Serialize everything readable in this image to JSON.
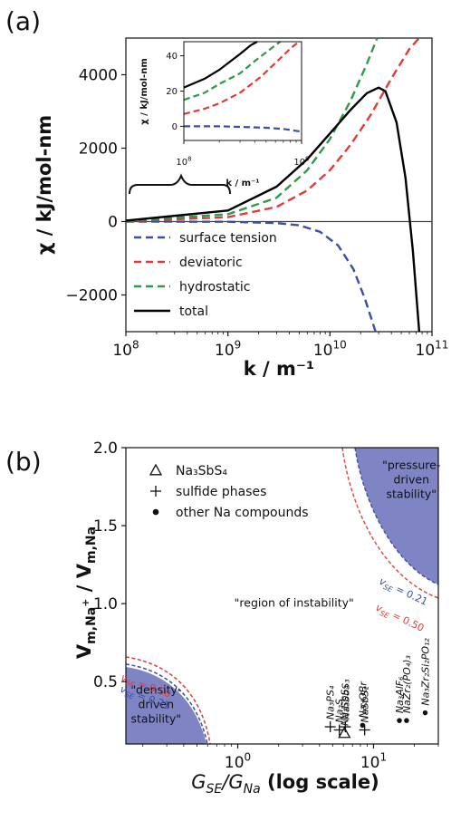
{
  "chart_data": [
    {
      "panel_label": "(a)",
      "type": "line",
      "xlabel": "k / m⁻¹",
      "ylabel": "χ / kJ/mol-nm",
      "x_scale": "log",
      "xlim": [
        100000000.0,
        100000000000.0
      ],
      "ylim": [
        -3000,
        5000
      ],
      "xtick_labels": [
        {
          "base": "10",
          "exp": "8",
          "value": 100000000.0
        },
        {
          "base": "10",
          "exp": "9",
          "value": 1000000000.0
        },
        {
          "base": "10",
          "exp": "10",
          "value": 10000000000.0
        },
        {
          "base": "10",
          "exp": "11",
          "value": 100000000000.0
        }
      ],
      "ytick_labels": [
        {
          "label": "−2000",
          "value": -2000
        },
        {
          "label": "0",
          "value": 0
        },
        {
          "label": "2000",
          "value": 2000
        },
        {
          "label": "4000",
          "value": 4000
        }
      ],
      "legend_position": "lower-left",
      "series": [
        {
          "name": "surface tension",
          "color": "#3b4ea6",
          "dash": true,
          "x": [
            100000000.0,
            1000000000.0,
            3000000000.0,
            5000000000.0,
            8000000000.0,
            12000000000.0,
            17000000000.0,
            22000000000.0,
            28000000000.0
          ],
          "y": [
            0,
            -5,
            -40,
            -100,
            -280,
            -650,
            -1300,
            -2100,
            -3000
          ]
        },
        {
          "name": "deviatoric",
          "color": "#e03a3a",
          "dash": true,
          "x": [
            100000000.0,
            1000000000.0,
            3000000000.0,
            6000000000.0,
            10000000000.0,
            16000000000.0,
            25000000000.0,
            40000000000.0,
            60000000000.0,
            75000000000.0
          ],
          "y": [
            10,
            120,
            400,
            850,
            1400,
            2100,
            2900,
            3900,
            4700,
            5000
          ]
        },
        {
          "name": "hydrostatic",
          "color": "#2e9a4a",
          "dash": true,
          "x": [
            100000000.0,
            1000000000.0,
            3000000000.0,
            6000000000.0,
            10000000000.0,
            16000000000.0,
            23000000000.0,
            29000000000.0
          ],
          "y": [
            15,
            200,
            650,
            1400,
            2250,
            3300,
            4300,
            5000
          ]
        },
        {
          "name": "total",
          "color": "#000000",
          "dash": false,
          "x": [
            100000000.0,
            1000000000.0,
            3000000000.0,
            6000000000.0,
            10000000000.0,
            16000000000.0,
            23000000000.0,
            30000000000.0,
            35000000000.0,
            45000000000.0,
            55000000000.0,
            65000000000.0,
            75000000000.0
          ],
          "y": [
            25,
            300,
            950,
            1700,
            2400,
            3050,
            3500,
            3650,
            3550,
            2700,
            1200,
            -800,
            -3000
          ]
        }
      ],
      "inset": {
        "ylabel": "χ / kJ/mol-nm",
        "xlabel": "k / m⁻¹",
        "xlim": [
          100000000.0,
          1000000000.0
        ],
        "ylim": [
          -8,
          48
        ],
        "xtick_labels": [
          {
            "base": "10",
            "exp": "8",
            "value": 100000000.0
          },
          {
            "base": "10",
            "exp": "9",
            "value": 1000000000.0
          }
        ],
        "ytick_labels": [
          {
            "label": "0",
            "value": 0
          },
          {
            "label": "20",
            "value": 20
          },
          {
            "label": "40",
            "value": 40
          }
        ],
        "series": [
          {
            "name": "surface tension",
            "x": [
              100000000.0,
              200000000.0,
              300000000.0,
              500000000.0,
              700000000.0,
              1000000000.0
            ],
            "y": [
              0,
              0,
              -0.3,
              -0.8,
              -1.5,
              -3
            ]
          },
          {
            "name": "deviatoric",
            "x": [
              100000000.0,
              150000000.0,
              200000000.0,
              300000000.0,
              450000000.0,
              600000000.0,
              800000000.0,
              950000000.0
            ],
            "y": [
              7,
              10,
              13,
              19,
              28,
              36,
              44,
              48
            ]
          },
          {
            "name": "hydrostatic",
            "x": [
              100000000.0,
              150000000.0,
              200000000.0,
              300000000.0,
              400000000.0,
              500000000.0,
              600000000.0,
              660000000.0
            ],
            "y": [
              15,
              19,
              24,
              30,
              37,
              42,
              46,
              48
            ]
          },
          {
            "name": "total",
            "x": [
              100000000.0,
              150000000.0,
              200000000.0,
              300000000.0,
              370000000.0,
              420000000.0
            ],
            "y": [
              22,
              27,
              32,
              41,
              46,
              48
            ]
          }
        ]
      }
    },
    {
      "panel_label": "(b)",
      "type": "scatter",
      "xlabel": "G_SE/G_Na (log scale)",
      "ylabel": "V_m,Na+ / V_m,Na",
      "x_scale": "log",
      "xlim": [
        0.15,
        30
      ],
      "ylim": [
        0.1,
        2.0
      ],
      "xtick_labels": [
        {
          "base": "10",
          "exp": "0",
          "value": 1
        },
        {
          "base": "10",
          "exp": "1",
          "value": 10
        }
      ],
      "ytick_labels": [
        {
          "label": "0.5",
          "value": 0.5
        },
        {
          "label": "1.0",
          "value": 1.0
        },
        {
          "label": "1.5",
          "value": 1.5
        },
        {
          "label": "2.0",
          "value": 2.0
        }
      ],
      "region_color": "#7f84c4",
      "regions": [
        {
          "text": [
            "\"density-",
            "driven",
            "stability\""
          ],
          "x": 0.25,
          "y": 0.33
        },
        {
          "text": [
            "\"pressure-",
            "driven",
            "stability\""
          ],
          "x": 19,
          "y": 1.77
        },
        {
          "text": [
            "\"region of instability\""
          ],
          "x": 2.6,
          "y": 0.98
        }
      ],
      "curve_labels": [
        {
          "text": "v_SE = 0.21",
          "color": "#3b4ea6"
        },
        {
          "text": "v_SE = 0.50",
          "color": "#e03a3a"
        }
      ],
      "legend": [
        {
          "marker": "triangle",
          "label": "Na₃SbS₄"
        },
        {
          "marker": "plus",
          "label": "sulfide phases"
        },
        {
          "marker": "dot",
          "label": "other Na compounds"
        }
      ],
      "points": [
        {
          "label": "Na₃PS₄",
          "marker": "plus",
          "x": 4.8,
          "y": 0.21
        },
        {
          "label": "Na₂S",
          "marker": "plus",
          "x": 5.6,
          "y": 0.19
        },
        {
          "label": "Na₃SbS₃",
          "marker": "plus",
          "x": 6.2,
          "y": 0.21
        },
        {
          "label": "Na₃SbS₄",
          "marker": "triangle",
          "x": 6.1,
          "y": 0.17
        },
        {
          "label": "Na₃OBr",
          "marker": "dot",
          "x": 8.3,
          "y": 0.22
        },
        {
          "label": "NaSbS₂",
          "marker": "plus",
          "x": 8.6,
          "y": 0.19
        },
        {
          "label": "Na₃AlF₆",
          "marker": "dot",
          "x": 15.5,
          "y": 0.25
        },
        {
          "label": "NaZr₂(PO₄)₃",
          "marker": "dot",
          "x": 17.5,
          "y": 0.25
        },
        {
          "label": "Na₃Zr₂Si₂PO₁₂",
          "marker": "dot",
          "x": 24.0,
          "y": 0.3
        }
      ]
    }
  ]
}
